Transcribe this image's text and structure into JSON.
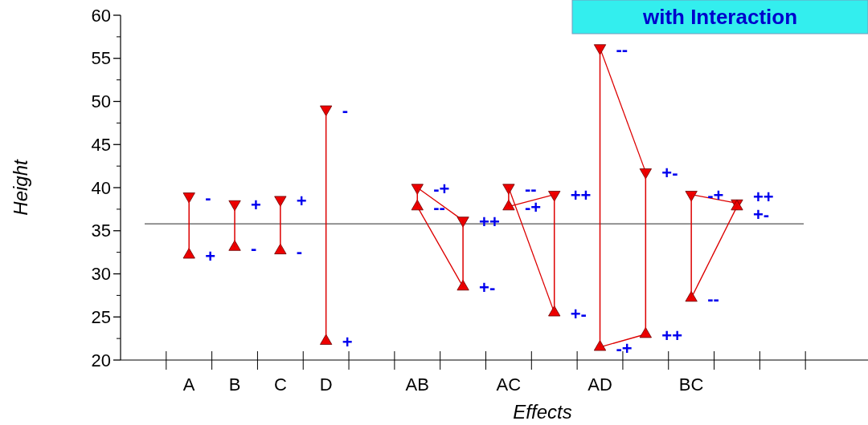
{
  "chart_data": {
    "type": "line",
    "title": "with Interaction",
    "xlabel": "Effects",
    "ylabel": "Height",
    "categories": [
      "A",
      "B",
      "C",
      "D",
      null,
      "AB",
      null,
      "AC",
      null,
      "AD",
      null,
      "BC",
      null,
      null
    ],
    "ylim": [
      20,
      60
    ],
    "yticks": [
      20,
      25,
      30,
      35,
      40,
      45,
      50,
      55,
      60
    ],
    "grid": false,
    "line_style": "solid",
    "marker": "none",
    "ref_lines": [
      {
        "axis": "y",
        "value": 35.8,
        "color": "#555555"
      }
    ],
    "series": [
      {
        "type": "bar",
        "color": "#dd0000",
        "base": [
          32.2,
          33.1,
          32.7,
          22.2,
          null,
          37.8,
          28.5,
          37.8,
          25.5,
          21.5,
          23,
          27.2,
          37.8,
          null
        ],
        "values": [
          6.8,
          5.0,
          5.9,
          26.9,
          null,
          2.2,
          7.7,
          2.2,
          13.7,
          34.7,
          18.8,
          12.0,
          0.4,
          null
        ]
      },
      {
        "color": "#dd0000",
        "values": [
          null,
          null,
          null,
          null,
          null,
          40,
          36.2,
          null,
          null,
          null,
          null,
          null,
          null,
          null
        ]
      },
      {
        "color": "#dd0000",
        "values": [
          null,
          null,
          null,
          null,
          null,
          37.8,
          28.5,
          null,
          null,
          null,
          null,
          null,
          null,
          null
        ]
      },
      {
        "color": "#dd0000",
        "values": [
          null,
          null,
          null,
          null,
          null,
          null,
          null,
          40,
          25.5,
          null,
          null,
          null,
          null,
          null
        ]
      },
      {
        "color": "#dd0000",
        "values": [
          null,
          null,
          null,
          null,
          null,
          null,
          null,
          37.8,
          39.2,
          null,
          null,
          null,
          null,
          null
        ]
      },
      {
        "color": "#dd0000",
        "values": [
          null,
          null,
          null,
          null,
          null,
          null,
          null,
          null,
          null,
          56.2,
          41.8,
          null,
          null,
          null
        ]
      },
      {
        "color": "#dd0000",
        "values": [
          null,
          null,
          null,
          null,
          null,
          null,
          null,
          null,
          null,
          21.5,
          23,
          null,
          null,
          null
        ]
      },
      {
        "color": "#dd0000",
        "values": [
          null,
          null,
          null,
          null,
          null,
          null,
          null,
          null,
          null,
          null,
          null,
          39.2,
          38.2,
          null
        ]
      },
      {
        "color": "#dd0000",
        "values": [
          null,
          null,
          null,
          null,
          null,
          null,
          null,
          null,
          null,
          null,
          null,
          27.2,
          37.8,
          null
        ]
      },
      {
        "type": "scatter",
        "color": "#ee0000",
        "marker": "triangle-down",
        "values": [
          39,
          38.1,
          38.6,
          49.1,
          null,
          40,
          36.2,
          40,
          39.2,
          56.2,
          41.8,
          39.2,
          38.2,
          null
        ],
        "value_labels": [
          "-",
          "+",
          "+",
          "-",
          null,
          "-+",
          "++",
          "--",
          "++",
          "--",
          "+-",
          "-+",
          "++",
          null
        ]
      },
      {
        "type": "scatter",
        "color": "#ee0000",
        "marker": "triangle",
        "values": [
          32.2,
          33.1,
          32.7,
          22.2,
          null,
          37.8,
          28.5,
          37.8,
          25.5,
          21.5,
          23,
          27.2,
          37.8,
          null
        ],
        "value_labels": [
          "+",
          "-",
          "-",
          "+",
          null,
          "--",
          "+-",
          "-+",
          "+-",
          "-+",
          "++",
          "--",
          "+-",
          null
        ]
      }
    ]
  }
}
